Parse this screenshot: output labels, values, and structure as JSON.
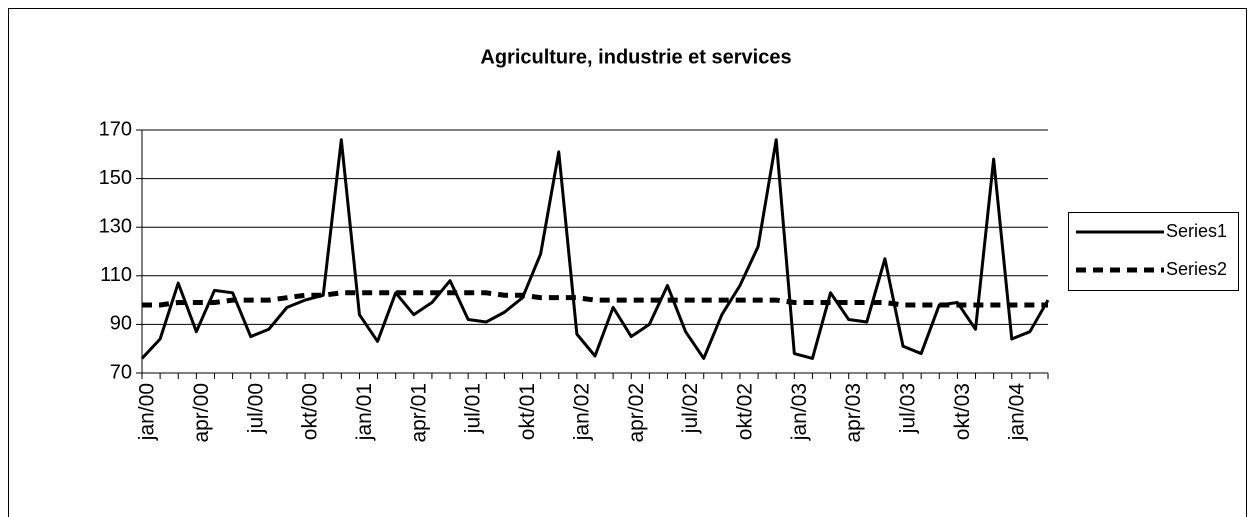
{
  "chart_data": {
    "type": "line",
    "title": "Agriculture, industrie et services",
    "categories": [
      "jan/00",
      null,
      null,
      "apr/00",
      null,
      null,
      "jul/00",
      null,
      null,
      "okt/00",
      null,
      null,
      "jan/01",
      null,
      null,
      "apr/01",
      null,
      null,
      "jul/01",
      null,
      null,
      "okt/01",
      null,
      null,
      "jan/02",
      null,
      null,
      "apr/02",
      null,
      null,
      "jul/02",
      null,
      null,
      "okt/02",
      null,
      null,
      "jan/03",
      null,
      null,
      "apr/03",
      null,
      null,
      "jul/03",
      null,
      null,
      "okt/03",
      null,
      null,
      "jan/04",
      null,
      null
    ],
    "series": [
      {
        "name": "Series1",
        "color": "#000000",
        "dash": "solid",
        "values": [
          76,
          84,
          107,
          87,
          104,
          103,
          85,
          88,
          97,
          100,
          102,
          166,
          94,
          83,
          103,
          94,
          99,
          108,
          92,
          91,
          95,
          101,
          119,
          161,
          86,
          77,
          97,
          85,
          90,
          106,
          87,
          76,
          94,
          106,
          122,
          166,
          78,
          76,
          103,
          92,
          91,
          117,
          81,
          78,
          98,
          99,
          88,
          158,
          84,
          87,
          100
        ]
      },
      {
        "name": "Series2",
        "color": "#000000",
        "dash": "dashed",
        "values": [
          98,
          98,
          99,
          99,
          99,
          100,
          100,
          100,
          101,
          102,
          102,
          103,
          103,
          103,
          103,
          103,
          103,
          103,
          103,
          103,
          102,
          102,
          101,
          101,
          101,
          100,
          100,
          100,
          100,
          100,
          100,
          100,
          100,
          100,
          100,
          100,
          99,
          99,
          99,
          99,
          99,
          99,
          98,
          98,
          98,
          98,
          98,
          98,
          98,
          98,
          98
        ]
      }
    ],
    "ylim": [
      70,
      170
    ],
    "yticks": [
      70,
      90,
      110,
      130,
      150,
      170
    ],
    "grid": true,
    "legend": "right"
  }
}
